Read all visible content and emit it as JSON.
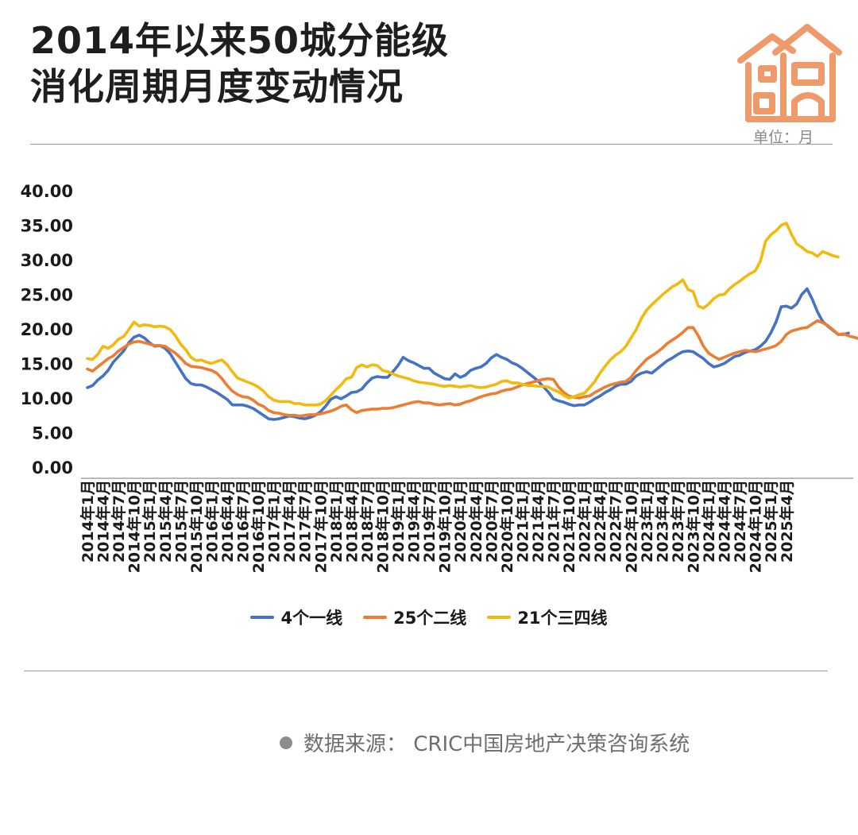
{
  "header": {
    "title_line1": "2014年以来50城分能级",
    "title_line2": "消化周期月度变动情况",
    "unit": "单位：月"
  },
  "footer": {
    "source": "数据来源：  CRIC中国房地产决策咨询系统"
  },
  "colors": {
    "accent_house": "#EE9A6A",
    "tier1": "#4472C4",
    "tier2": "#ED7D31",
    "tier34": "#F2B90F"
  },
  "icons": {
    "logo": "house-icon"
  },
  "chart_data": {
    "type": "line",
    "title": "",
    "xlabel": "",
    "ylabel": "",
    "ylim": [
      0,
      40
    ],
    "yticks": [
      "0.00",
      "5.00",
      "10.00",
      "15.00",
      "20.00",
      "25.00",
      "30.00",
      "35.00",
      "40.00"
    ],
    "grid": false,
    "legend_position": "bottom",
    "x_labels": [
      "2014年1月",
      "2014年4月",
      "2014年7月",
      "2014年10月",
      "2015年1月",
      "2015年4月",
      "2015年7月",
      "2015年10月",
      "2016年1月",
      "2016年4月",
      "2016年7月",
      "2016年10月",
      "2017年1月",
      "2017年4月",
      "2017年7月",
      "2017年10月",
      "2018年1月",
      "2018年4月",
      "2018年7月",
      "2018年10月",
      "2019年1月",
      "2019年4月",
      "2019年7月",
      "2019年10月",
      "2020年1月",
      "2020年4月",
      "2020年7月",
      "2020年10月",
      "2021年1月",
      "2021年4月",
      "2021年7月",
      "2021年10月",
      "2022年1月",
      "2022年4月",
      "2022年7月",
      "2022年10月",
      "2023年1月",
      "2023年4月",
      "2023年7月",
      "2023年10月",
      "2024年1月",
      "2024年4月",
      "2024年7月",
      "2024年10月",
      "2025年1月",
      "2025年4月"
    ],
    "x_start": "2014-01",
    "series": [
      {
        "name": "4个一线",
        "color": "#4472C4",
        "values": [
          11.5,
          11.8,
          12.6,
          13.2,
          14.0,
          15.2,
          16.0,
          16.8,
          18.0,
          18.8,
          19.1,
          18.7,
          18.0,
          17.5,
          17.6,
          17.2,
          16.4,
          15.2,
          14.0,
          12.8,
          12.1,
          11.9,
          11.9,
          11.6,
          11.2,
          10.8,
          10.3,
          9.8,
          9.0,
          9.0,
          9.0,
          8.8,
          8.5,
          8.0,
          7.5,
          7.0,
          6.9,
          7.0,
          7.2,
          7.4,
          7.3,
          7.1,
          7.0,
          7.2,
          7.5,
          8.0,
          8.8,
          9.8,
          10.2,
          9.9,
          10.3,
          10.8,
          10.9,
          11.3,
          12.2,
          12.9,
          13.1,
          13.0,
          13.0,
          13.8,
          14.7,
          15.9,
          15.4,
          15.1,
          14.7,
          14.3,
          14.3,
          13.6,
          13.2,
          12.8,
          12.7,
          13.5,
          13.0,
          13.3,
          14.0,
          14.3,
          14.5,
          15.0,
          15.8,
          16.3,
          15.9,
          15.6,
          15.1,
          14.8,
          14.3,
          13.7,
          13.1,
          12.5,
          11.7,
          10.9,
          9.9,
          9.6,
          9.4,
          9.1,
          8.9,
          9.0,
          9.0,
          9.4,
          9.9,
          10.3,
          10.8,
          11.2,
          11.7,
          12.0,
          12.0,
          12.4,
          13.2,
          13.6,
          13.8,
          13.6,
          14.2,
          14.8,
          15.4,
          15.8,
          16.3,
          16.7,
          16.8,
          16.7,
          16.2,
          15.7,
          15.0,
          14.5,
          14.7,
          15.0,
          15.5,
          16.0,
          16.2,
          16.6,
          16.8,
          17.0,
          17.5,
          18.2,
          19.4,
          21.0,
          23.2,
          23.3,
          23.0,
          23.6,
          25.0,
          25.8,
          24.3,
          22.5,
          21.1,
          20.4,
          19.8,
          19.2,
          19.2,
          19.4
        ]
      },
      {
        "name": "25个二线",
        "color": "#ED7D31",
        "values": [
          14.2,
          13.9,
          14.5,
          15.1,
          15.7,
          16.1,
          16.8,
          17.3,
          17.8,
          18.1,
          18.2,
          18.0,
          17.8,
          17.6,
          17.6,
          17.5,
          17.0,
          16.5,
          15.8,
          15.0,
          14.6,
          14.5,
          14.4,
          14.2,
          14.0,
          13.6,
          12.8,
          11.8,
          11.0,
          10.5,
          10.2,
          10.1,
          9.7,
          9.1,
          8.8,
          8.2,
          7.9,
          7.8,
          7.6,
          7.5,
          7.5,
          7.4,
          7.5,
          7.6,
          7.6,
          7.7,
          7.9,
          8.1,
          8.4,
          8.8,
          9.0,
          8.3,
          7.9,
          8.2,
          8.3,
          8.4,
          8.4,
          8.5,
          8.5,
          8.6,
          8.8,
          9.0,
          9.2,
          9.4,
          9.5,
          9.3,
          9.3,
          9.1,
          9.0,
          9.1,
          9.2,
          9.0,
          9.1,
          9.4,
          9.6,
          9.9,
          10.2,
          10.4,
          10.6,
          10.7,
          11.0,
          11.2,
          11.3,
          11.6,
          11.9,
          12.1,
          12.3,
          12.5,
          12.7,
          12.8,
          12.7,
          11.6,
          10.8,
          10.3,
          10.1,
          10.0,
          10.2,
          10.3,
          10.8,
          11.2,
          11.6,
          11.9,
          12.1,
          12.3,
          12.4,
          13.0,
          14.0,
          14.8,
          15.6,
          16.1,
          16.6,
          17.2,
          17.9,
          18.4,
          18.9,
          19.5,
          20.2,
          20.2,
          19.0,
          17.5,
          16.5,
          16.0,
          15.6,
          15.9,
          16.2,
          16.5,
          16.7,
          16.9,
          16.8,
          16.7,
          16.9,
          17.1,
          17.3,
          17.6,
          18.2,
          19.2,
          19.7,
          19.9,
          20.1,
          20.2,
          20.7,
          21.2,
          20.9,
          20.5,
          19.9,
          19.2,
          19.3,
          19.0,
          18.8,
          18.6
        ]
      },
      {
        "name": "21个三四线",
        "color": "#F2B90F",
        "values": [
          15.7,
          15.6,
          16.3,
          17.5,
          17.2,
          17.7,
          18.5,
          18.9,
          19.9,
          21.0,
          20.4,
          20.6,
          20.5,
          20.3,
          20.4,
          20.3,
          19.9,
          19.0,
          17.8,
          17.0,
          15.9,
          15.4,
          15.5,
          15.2,
          15.0,
          15.3,
          15.5,
          14.8,
          13.8,
          12.9,
          12.6,
          12.3,
          12.0,
          11.6,
          11.0,
          10.2,
          9.7,
          9.5,
          9.5,
          9.5,
          9.2,
          9.2,
          9.0,
          9.0,
          9.0,
          9.1,
          9.6,
          10.4,
          11.2,
          11.9,
          12.8,
          13.0,
          14.4,
          14.8,
          14.5,
          14.8,
          14.7,
          14.0,
          13.8,
          13.5,
          13.2,
          13.0,
          12.8,
          12.5,
          12.3,
          12.2,
          12.1,
          12.0,
          11.8,
          11.7,
          11.8,
          11.7,
          11.6,
          11.7,
          11.8,
          11.6,
          11.5,
          11.6,
          11.8,
          12.0,
          12.4,
          12.5,
          12.2,
          12.2,
          12.0,
          11.8,
          11.8,
          11.7,
          11.7,
          11.6,
          11.2,
          10.9,
          10.4,
          10.0,
          10.2,
          10.5,
          10.7,
          11.5,
          12.4,
          13.6,
          14.6,
          15.5,
          16.2,
          16.7,
          17.5,
          18.7,
          19.9,
          21.5,
          22.7,
          23.5,
          24.2,
          24.9,
          25.5,
          26.1,
          26.5,
          27.1,
          25.7,
          25.4,
          23.3,
          23.0,
          23.6,
          24.4,
          24.9,
          25.0,
          25.8,
          26.4,
          26.9,
          27.5,
          28.0,
          28.4,
          29.8,
          32.7,
          33.6,
          34.2,
          35.0,
          35.3,
          33.7,
          32.3,
          31.8,
          31.2,
          31.0,
          30.5,
          31.2,
          30.9,
          30.6,
          30.4
        ]
      }
    ]
  }
}
